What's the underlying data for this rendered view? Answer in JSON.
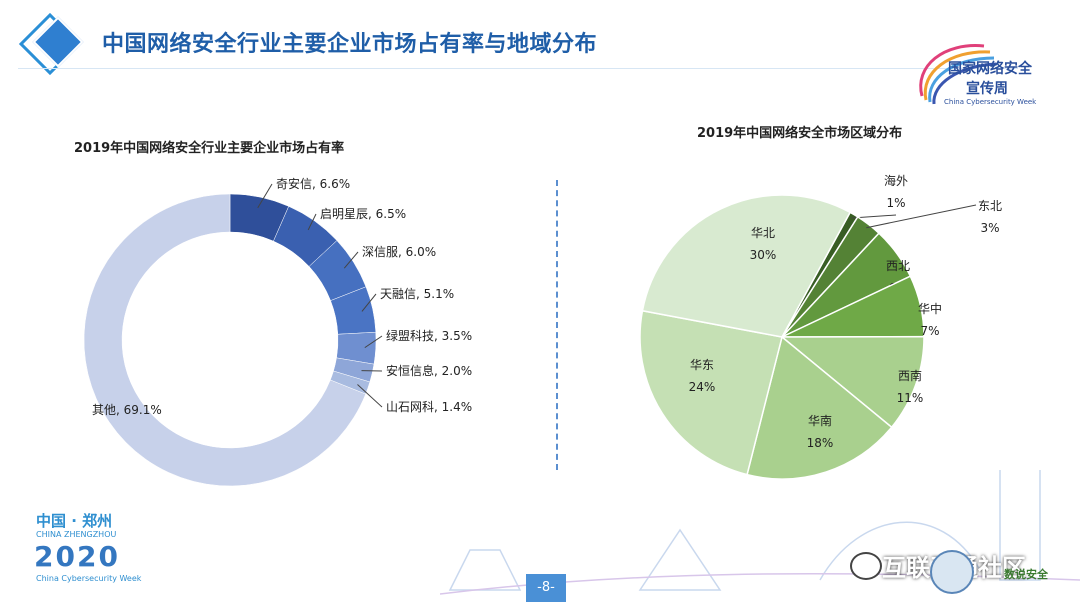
{
  "header": {
    "title": "中国网络安全行业主要企业市场占有率与地域分布"
  },
  "logo": {
    "line1": "国家网络安全",
    "line2": "宣传周",
    "line3": "China Cybersecurity Week"
  },
  "footer": {
    "city_cn": "中国 · 郑州",
    "city_en": "CHINA ZHENGZHOU",
    "year": "2020",
    "week_en": "China Cybersecurity Week",
    "page_number": "-8-",
    "watermark": "互联互通社区",
    "brand": "数说安全"
  },
  "colors": {
    "title_blue": "#1f5ea8",
    "donut": [
      "#2f4f9a",
      "#3a60b0",
      "#4670c0",
      "#4a74c4",
      "#6f8fd0",
      "#8ea6d8",
      "#a8bbe0",
      "#c7d1ea"
    ],
    "pie": [
      "#385d24",
      "#548235",
      "#62993e",
      "#6fa947",
      "#a9d08e",
      "#a9d08e",
      "#c5e0b4",
      "#d8ead0"
    ]
  },
  "chart_data": [
    {
      "type": "pie",
      "variant": "donut",
      "title": "2019年中国网络安全行业主要企业市场占有率",
      "categories": [
        "奇安信",
        "启明星辰",
        "深信服",
        "天融信",
        "绿盟科技",
        "安恒信息",
        "山石网科",
        "其他"
      ],
      "values": [
        6.6,
        6.5,
        6.0,
        5.1,
        3.5,
        2.0,
        1.4,
        69.1
      ],
      "labels": [
        "奇安信, 6.6%",
        "启明星辰, 6.5%",
        "深信服, 6.0%",
        "天融信, 5.1%",
        "绿盟科技, 3.5%",
        "安恒信息, 2.0%",
        "山石网科, 1.4%",
        "其他, 69.1%"
      ],
      "unit": "%"
    },
    {
      "type": "pie",
      "title": "2019年中国网络安全市场区域分布",
      "categories": [
        "海外",
        "东北",
        "西北",
        "华中",
        "西南",
        "华南",
        "华东",
        "华北"
      ],
      "values": [
        1,
        3,
        6,
        7,
        11,
        18,
        24,
        30
      ],
      "value_labels": [
        "1%",
        "3%",
        "6%",
        "7%",
        "11%",
        "18%",
        "24%",
        "30%"
      ],
      "unit": "%"
    }
  ]
}
